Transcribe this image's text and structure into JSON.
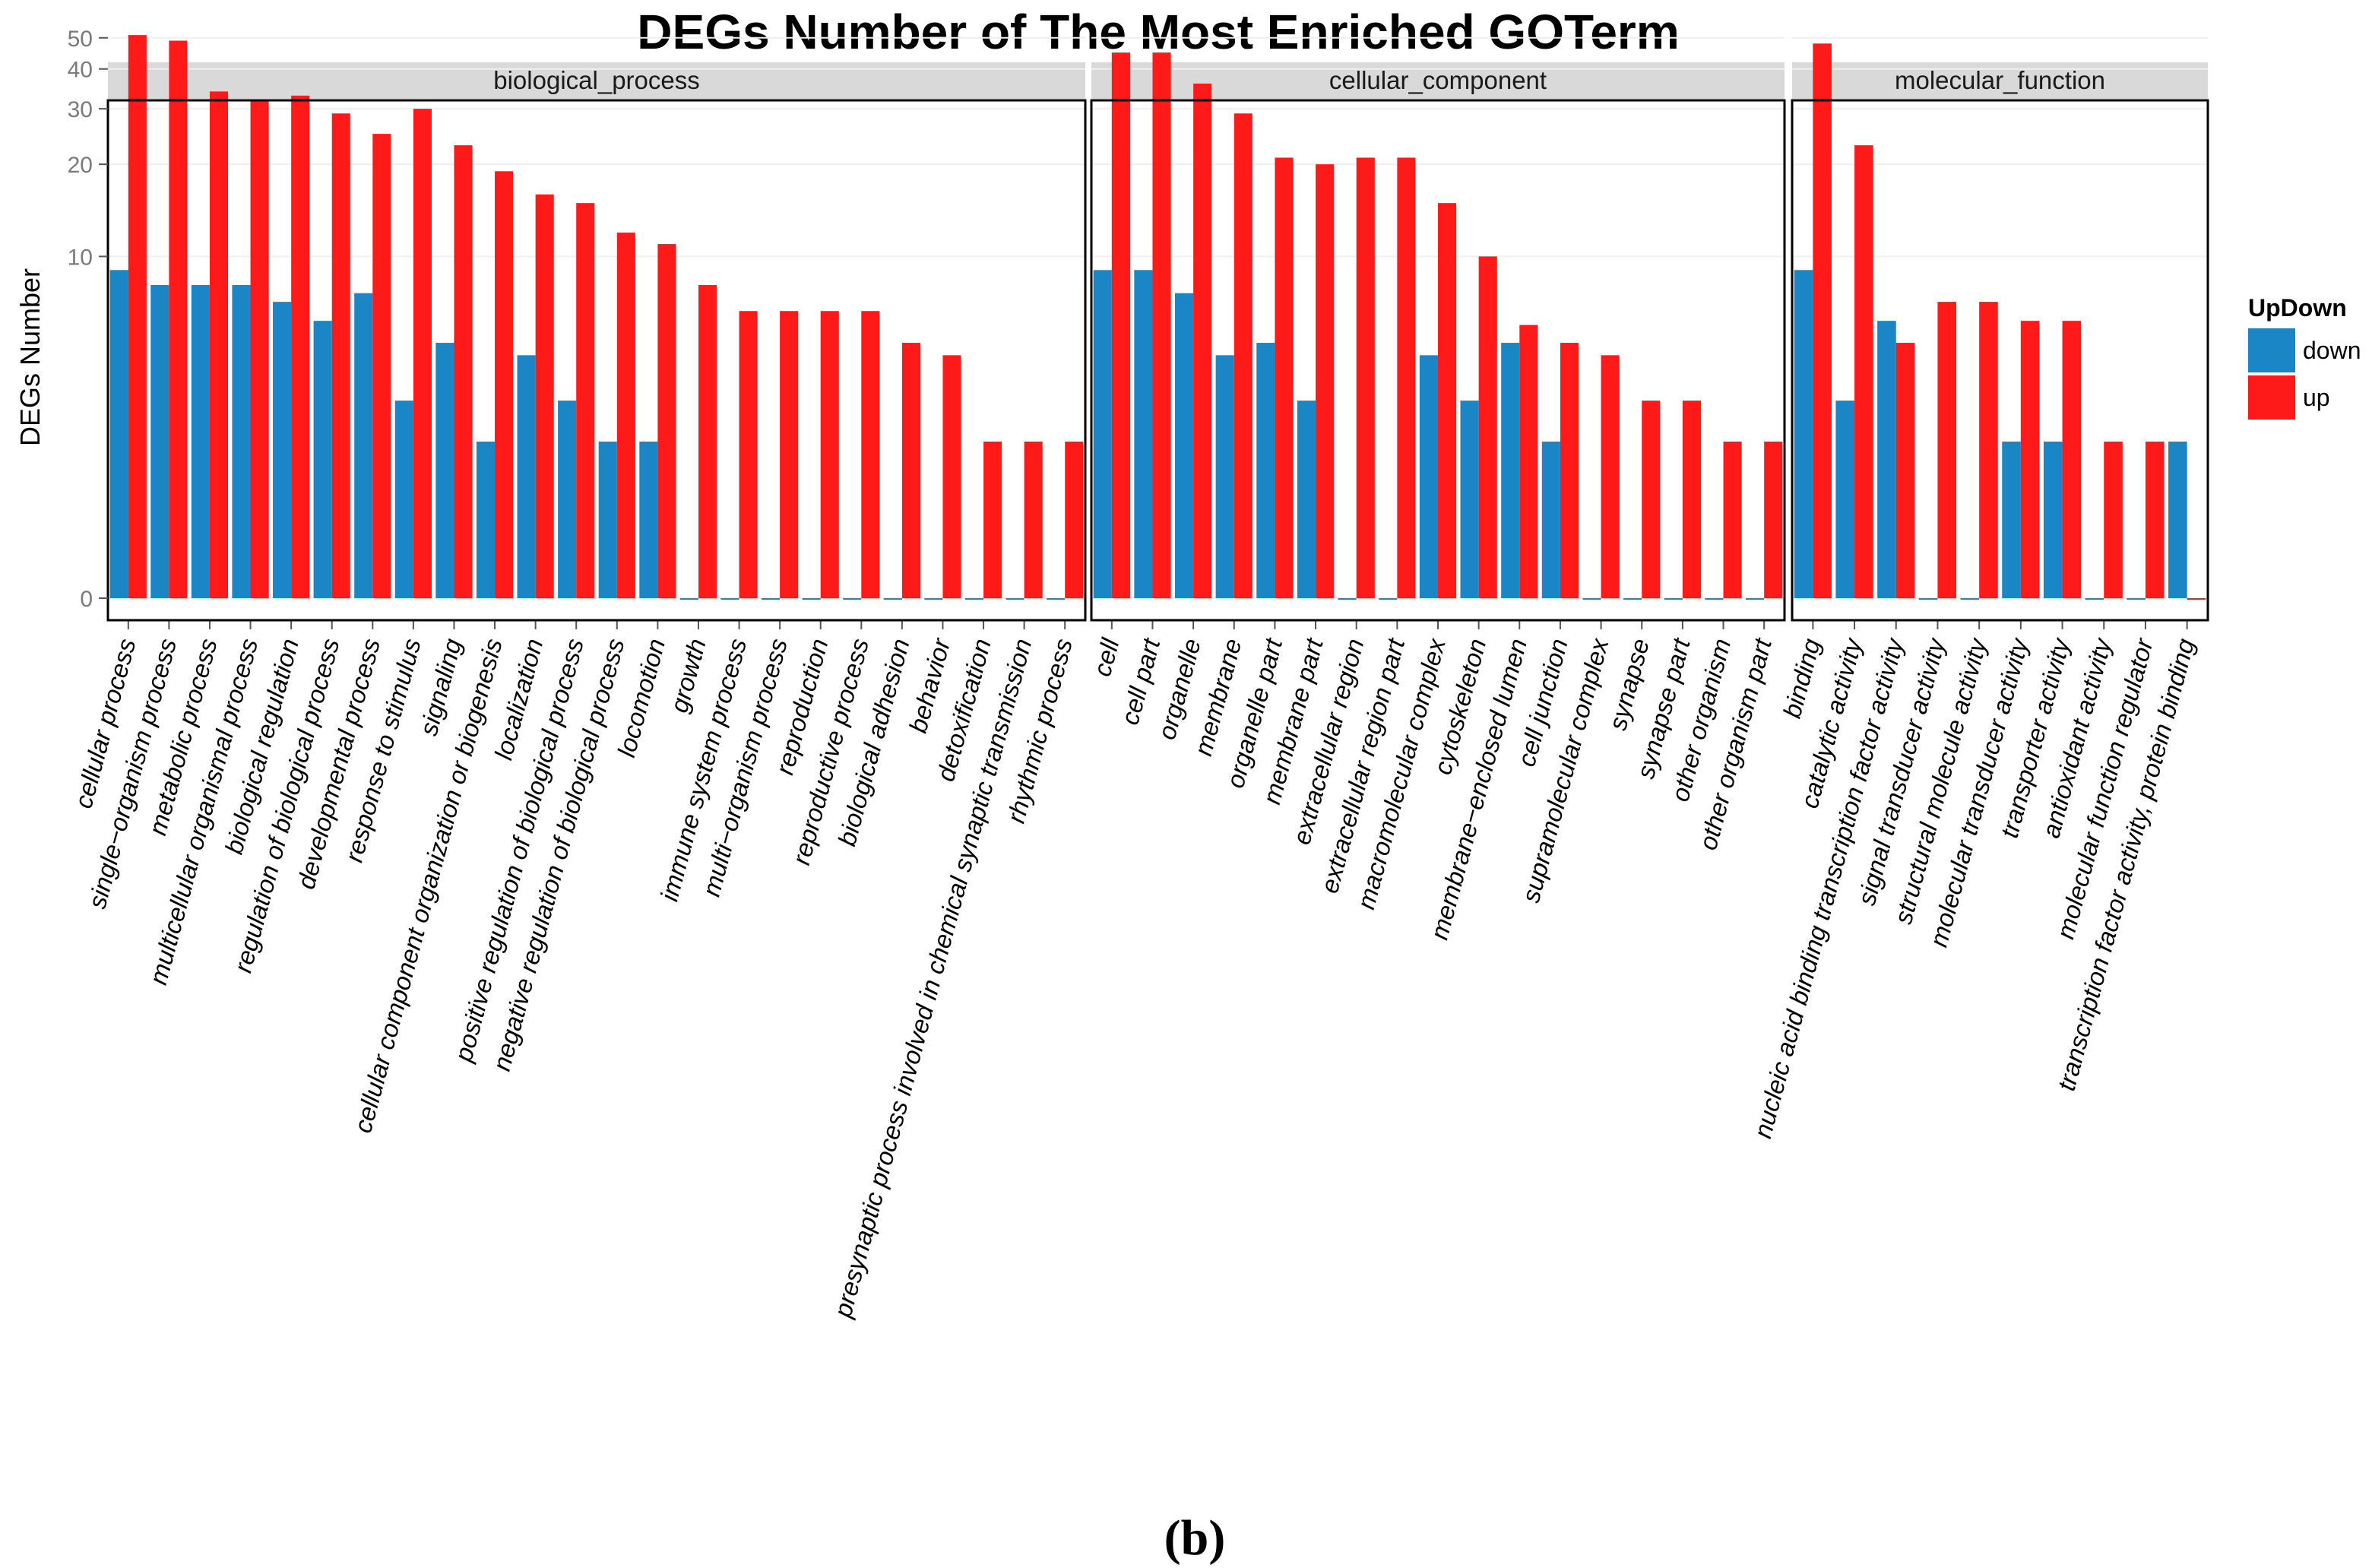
{
  "chart_data": {
    "type": "bar",
    "title": "DEGs Number of The Most Enriched GOTerm",
    "ylabel": "DEGs Number",
    "xlabel": "",
    "y_scale": "log1p",
    "ylim": [
      0,
      60
    ],
    "yticks": [
      0,
      10,
      20,
      30,
      40,
      50
    ],
    "legend": {
      "title": "UpDown",
      "position": "right",
      "entries": [
        {
          "name": "down",
          "color": "#1b86c6"
        },
        {
          "name": "up",
          "color": "#ff1a1a"
        }
      ]
    },
    "panels": [
      {
        "name": "biological_process",
        "categories": [
          "cellular process",
          "single−organism process",
          "metabolic process",
          "multicellular organismal process",
          "biological regulation",
          "regulation of biological process",
          "developmental process",
          "response to stimulus",
          "signaling",
          "cellular component organization or biogenesis",
          "localization",
          "positive regulation of biological process",
          "negative regulation of biological process",
          "locomotion",
          "growth",
          "immune system process",
          "multi−organism process",
          "reproduction",
          "reproductive process",
          "biological adhesion",
          "behavior",
          "detoxification",
          "presynaptic process involved in chemical synaptic transmission",
          "rhythmic process"
        ],
        "series": [
          {
            "name": "down",
            "values": [
              9,
              8,
              8,
              8,
              7,
              6,
              7.5,
              3,
              5,
              2,
              4.5,
              3,
              2,
              2,
              0,
              0,
              0,
              0,
              0,
              0,
              0,
              0,
              0,
              0
            ]
          },
          {
            "name": "up",
            "values": [
              51,
              49,
              34,
              32,
              33,
              29,
              25,
              30,
              23,
              19,
              16,
              15,
              12,
              11,
              8,
              6.5,
              6.5,
              6.5,
              6.5,
              5,
              4.5,
              2,
              2,
              2
            ]
          }
        ]
      },
      {
        "name": "cellular_component",
        "categories": [
          "cell",
          "cell part",
          "organelle",
          "membrane",
          "organelle part",
          "membrane part",
          "extracellular region",
          "extracellular region part",
          "macromolecular complex",
          "cytoskeleton",
          "membrane−enclosed lumen",
          "cell junction",
          "supramolecular complex",
          "synapse",
          "synapse part",
          "other organism",
          "other organism part"
        ],
        "series": [
          {
            "name": "down",
            "values": [
              9,
              9,
              7.5,
              4.5,
              5,
              3,
              0,
              0,
              4.5,
              3,
              5,
              2,
              0,
              0,
              0,
              0,
              0
            ]
          },
          {
            "name": "up",
            "values": [
              45,
              45,
              36,
              29,
              21,
              20,
              21,
              21,
              15,
              10,
              5.8,
              5,
              4.5,
              3,
              3,
              2,
              2
            ]
          }
        ]
      },
      {
        "name": "molecular_function",
        "categories": [
          "binding",
          "catalytic activity",
          "nucleic acid binding transcription factor activity",
          "signal transducer activity",
          "structural molecule activity",
          "molecular transducer activity",
          "transporter activity",
          "antioxidant activity",
          "molecular function regulator",
          "transcription factor activity, protein binding"
        ],
        "series": [
          {
            "name": "down",
            "values": [
              9,
              3,
              6,
              0,
              0,
              2,
              2,
              0,
              0,
              2
            ]
          },
          {
            "name": "up",
            "values": [
              48,
              23,
              5,
              7,
              7,
              6,
              6,
              2,
              2,
              0
            ]
          }
        ]
      }
    ]
  },
  "caption": "(b)"
}
